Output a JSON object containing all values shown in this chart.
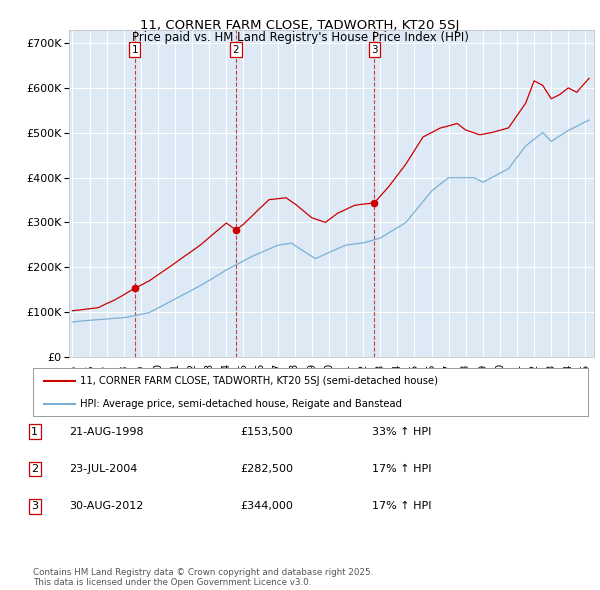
{
  "title1": "11, CORNER FARM CLOSE, TADWORTH, KT20 5SJ",
  "title2": "Price paid vs. HM Land Registry's House Price Index (HPI)",
  "ytick_vals": [
    0,
    100000,
    200000,
    300000,
    400000,
    500000,
    600000,
    700000
  ],
  "ylim": [
    0,
    730000
  ],
  "xlim_start": 1994.8,
  "xlim_end": 2025.5,
  "bg_color": "#ddeaf5",
  "grid_color": "#ffffff",
  "red_color": "#cc0000",
  "blue_color": "#7bafd4",
  "sale_dates": [
    1998.64,
    2004.56,
    2012.66
  ],
  "sale_prices": [
    153500,
    282500,
    344000
  ],
  "sale_labels": [
    "1",
    "2",
    "3"
  ],
  "vline_colors": [
    "#cc0000",
    "#7bafd4",
    "#cc0000"
  ],
  "legend_line1": "11, CORNER FARM CLOSE, TADWORTH, KT20 5SJ (semi-detached house)",
  "legend_line2": "HPI: Average price, semi-detached house, Reigate and Banstead",
  "table_entries": [
    {
      "num": "1",
      "date": "21-AUG-1998",
      "price": "£153,500",
      "pct": "33% ↑ HPI"
    },
    {
      "num": "2",
      "date": "23-JUL-2004",
      "price": "£282,500",
      "pct": "17% ↑ HPI"
    },
    {
      "num": "3",
      "date": "30-AUG-2012",
      "price": "£344,000",
      "pct": "17% ↑ HPI"
    }
  ],
  "footnote": "Contains HM Land Registry data © Crown copyright and database right 2025.\nThis data is licensed under the Open Government Licence v3.0.",
  "xtick_years": [
    1995,
    1996,
    1997,
    1998,
    1999,
    2000,
    2001,
    2002,
    2003,
    2004,
    2005,
    2006,
    2007,
    2008,
    2009,
    2010,
    2011,
    2012,
    2013,
    2014,
    2015,
    2016,
    2017,
    2018,
    2019,
    2020,
    2021,
    2022,
    2023,
    2024,
    2025
  ]
}
